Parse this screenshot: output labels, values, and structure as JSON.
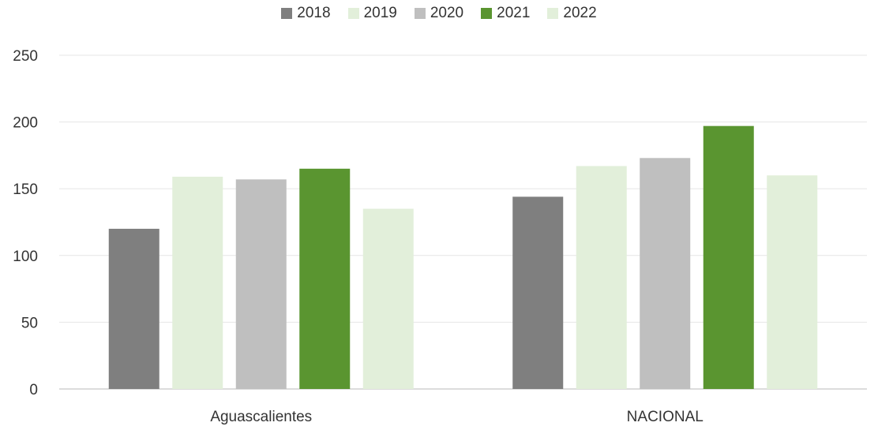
{
  "chart_data": {
    "type": "bar",
    "title": "",
    "xlabel": "",
    "ylabel": "",
    "categories": [
      "Aguascalientes",
      "NACIONAL"
    ],
    "series": [
      {
        "name": "2018",
        "color": "#7f7f7f",
        "values": [
          120,
          144
        ]
      },
      {
        "name": "2019",
        "color": "#e2efda",
        "values": [
          159,
          167
        ]
      },
      {
        "name": "2020",
        "color": "#bfbfbf",
        "values": [
          157,
          173
        ]
      },
      {
        "name": "2021",
        "color": "#5a9530",
        "values": [
          165,
          197
        ]
      },
      {
        "name": "2022",
        "color": "#e2efda",
        "values": [
          135,
          160
        ]
      }
    ],
    "ylim": [
      0,
      250
    ],
    "yticks": [
      0,
      50,
      100,
      150,
      200,
      250
    ],
    "grid": true,
    "legend_position": "top"
  }
}
